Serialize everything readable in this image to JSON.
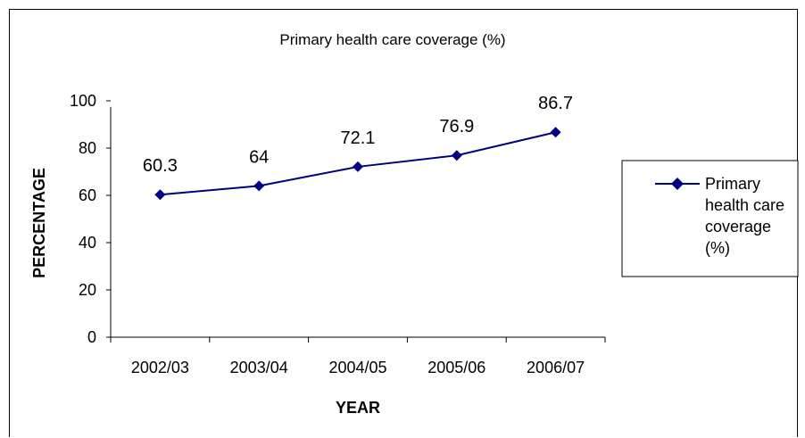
{
  "chart_data": {
    "type": "line",
    "title": "Primary health care coverage (%)",
    "xlabel": "YEAR",
    "ylabel": "PERCENTAGE",
    "categories": [
      "2002/03",
      "2003/04",
      "2004/05",
      "2005/06",
      "2006/07"
    ],
    "series": [
      {
        "name": "Primary health care coverage (%)",
        "legend_lines": [
          "Primary",
          "health care",
          "coverage",
          "(%)"
        ],
        "values": [
          60.3,
          64,
          72.1,
          76.9,
          86.7
        ],
        "data_labels": [
          "60.3",
          "64",
          "72.1",
          "76.9",
          "86.7"
        ],
        "color": "#000080"
      }
    ],
    "ylim": [
      0,
      100
    ],
    "yticks": [
      "0",
      "20",
      "40",
      "60",
      "80",
      "100"
    ],
    "grid": false,
    "legend_position": "right"
  }
}
